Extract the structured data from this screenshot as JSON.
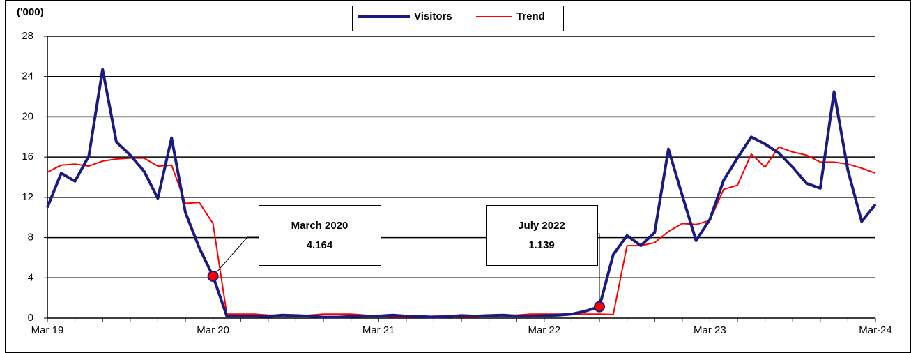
{
  "chart_data": {
    "type": "line",
    "y_unit_label": "('000)",
    "categories": [
      "Mar 19",
      null,
      null,
      null,
      null,
      null,
      null,
      null,
      null,
      null,
      null,
      null,
      "Mar 20",
      null,
      null,
      null,
      null,
      null,
      null,
      null,
      null,
      null,
      null,
      null,
      "Mar 21",
      null,
      null,
      null,
      null,
      null,
      null,
      null,
      null,
      null,
      null,
      null,
      "Mar 22",
      null,
      null,
      null,
      null,
      null,
      null,
      null,
      null,
      null,
      null,
      null,
      "Mar 23",
      null,
      null,
      null,
      null,
      null,
      null,
      null,
      null,
      null,
      null,
      null,
      "Mar-24"
    ],
    "series": [
      {
        "name": "Visitors",
        "color": "#1a1a80",
        "values": [
          11.0,
          14.4,
          13.6,
          16.1,
          24.7,
          17.5,
          16.2,
          14.6,
          11.9,
          17.9,
          10.5,
          7.0,
          4.164,
          0.2,
          0.2,
          0.2,
          0.15,
          0.3,
          0.25,
          0.2,
          0.1,
          0.1,
          0.15,
          0.2,
          0.2,
          0.3,
          0.2,
          0.15,
          0.1,
          0.15,
          0.25,
          0.2,
          0.25,
          0.3,
          0.2,
          0.2,
          0.25,
          0.3,
          0.4,
          0.7,
          1.139,
          6.3,
          8.2,
          7.2,
          8.5,
          16.8,
          12.2,
          7.7,
          9.8,
          13.7,
          15.9,
          18.0,
          17.3,
          16.4,
          15.0,
          13.4,
          12.9,
          22.5,
          14.7,
          9.6,
          11.3
        ]
      },
      {
        "name": "Trend",
        "color": "#ff0000",
        "values": [
          14.5,
          15.2,
          15.3,
          15.1,
          15.6,
          15.8,
          15.9,
          15.9,
          15.1,
          15.2,
          11.4,
          11.5,
          9.4,
          0.4,
          0.4,
          0.4,
          0.3,
          0.3,
          0.2,
          0.3,
          0.4,
          0.4,
          0.4,
          0.3,
          0.2,
          0.1,
          0.1,
          0.1,
          0.2,
          0.2,
          0.1,
          0.1,
          0.2,
          0.3,
          0.3,
          0.4,
          0.4,
          0.4,
          0.4,
          0.4,
          0.4,
          0.35,
          7.2,
          7.2,
          7.5,
          8.6,
          9.4,
          9.3,
          9.7,
          12.8,
          13.2,
          16.3,
          15.0,
          17.0,
          16.5,
          16.2,
          15.5,
          15.5,
          15.3,
          14.9,
          14.4
        ]
      }
    ],
    "annotations": [
      "March 2020",
      "July 2022"
    ],
    "ylim": [
      0,
      28
    ],
    "yticks": [
      0,
      4,
      8,
      12,
      16,
      20,
      24,
      28
    ],
    "grid": true,
    "legend": "top"
  }
}
